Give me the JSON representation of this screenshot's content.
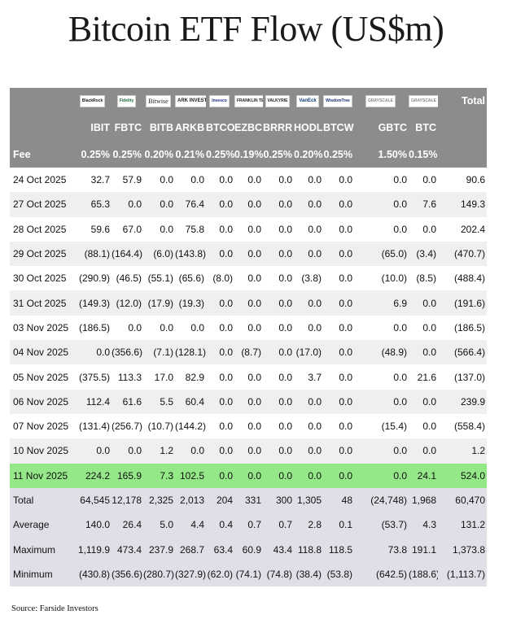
{
  "title": "Bitcoin ETF Flow (US$m)",
  "issuers": [
    "BlackRock",
    "Fidelity",
    "Bitwise",
    "ARK INVEST",
    "Invesco",
    "FRANKLIN TEMPLETON",
    "VALKYRIE",
    "VanEck",
    "WisdomTree",
    "GRAYSCALE",
    "GRAYSCALE"
  ],
  "total_label": "Total",
  "tickers": [
    "IBIT",
    "FBTC",
    "BITB",
    "ARKB",
    "BTCO",
    "EZBC",
    "BRRR",
    "HODL",
    "BTCW",
    "GBTC",
    "BTC"
  ],
  "fee": {
    "label": "Fee",
    "values": [
      "0.25%",
      "0.25%",
      "0.20%",
      "0.21%",
      "0.25%",
      "0.19%",
      "0.25%",
      "0.20%",
      "0.25%",
      "1.50%",
      "0.15%",
      ""
    ]
  },
  "rows": [
    {
      "date": "24 Oct 2025",
      "values": [
        "32.7",
        "57.9",
        "0.0",
        "0.0",
        "0.0",
        "0.0",
        "0.0",
        "0.0",
        "0.0",
        "0.0",
        "0.0",
        "90.6"
      ]
    },
    {
      "date": "27 Oct 2025",
      "values": [
        "65.3",
        "0.0",
        "0.0",
        "76.4",
        "0.0",
        "0.0",
        "0.0",
        "0.0",
        "0.0",
        "0.0",
        "7.6",
        "149.3"
      ]
    },
    {
      "date": "28 Oct 2025",
      "values": [
        "59.6",
        "67.0",
        "0.0",
        "75.8",
        "0.0",
        "0.0",
        "0.0",
        "0.0",
        "0.0",
        "0.0",
        "0.0",
        "202.4"
      ]
    },
    {
      "date": "29 Oct 2025",
      "values": [
        "(88.1)",
        "(164.4)",
        "(6.0)",
        "(143.8)",
        "0.0",
        "0.0",
        "0.0",
        "0.0",
        "0.0",
        "(65.0)",
        "(3.4)",
        "(470.7)"
      ]
    },
    {
      "date": "30 Oct 2025",
      "values": [
        "(290.9)",
        "(46.5)",
        "(55.1)",
        "(65.6)",
        "(8.0)",
        "0.0",
        "0.0",
        "(3.8)",
        "0.0",
        "(10.0)",
        "(8.5)",
        "(488.4)"
      ]
    },
    {
      "date": "31 Oct 2025",
      "values": [
        "(149.3)",
        "(12.0)",
        "(17.9)",
        "(19.3)",
        "0.0",
        "0.0",
        "0.0",
        "0.0",
        "0.0",
        "6.9",
        "0.0",
        "(191.6)"
      ]
    },
    {
      "date": "03 Nov 2025",
      "values": [
        "(186.5)",
        "0.0",
        "0.0",
        "0.0",
        "0.0",
        "0.0",
        "0.0",
        "0.0",
        "0.0",
        "0.0",
        "0.0",
        "(186.5)"
      ]
    },
    {
      "date": "04 Nov 2025",
      "values": [
        "0.0",
        "(356.6)",
        "(7.1)",
        "(128.1)",
        "0.0",
        "(8.7)",
        "0.0",
        "(17.0)",
        "0.0",
        "(48.9)",
        "0.0",
        "(566.4)"
      ]
    },
    {
      "date": "05 Nov 2025",
      "values": [
        "(375.5)",
        "113.3",
        "17.0",
        "82.9",
        "0.0",
        "0.0",
        "0.0",
        "3.7",
        "0.0",
        "0.0",
        "21.6",
        "(137.0)"
      ]
    },
    {
      "date": "06 Nov 2025",
      "values": [
        "112.4",
        "61.6",
        "5.5",
        "60.4",
        "0.0",
        "0.0",
        "0.0",
        "0.0",
        "0.0",
        "0.0",
        "0.0",
        "239.9"
      ]
    },
    {
      "date": "07 Nov 2025",
      "values": [
        "(131.4)",
        "(256.7)",
        "(10.7)",
        "(144.2)",
        "0.0",
        "0.0",
        "0.0",
        "0.0",
        "0.0",
        "(15.4)",
        "0.0",
        "(558.4)"
      ]
    },
    {
      "date": "10 Nov 2025",
      "values": [
        "0.0",
        "0.0",
        "1.2",
        "0.0",
        "0.0",
        "0.0",
        "0.0",
        "0.0",
        "0.0",
        "0.0",
        "0.0",
        "1.2"
      ]
    },
    {
      "date": "11 Nov 2025",
      "values": [
        "224.2",
        "165.9",
        "7.3",
        "102.5",
        "0.0",
        "0.0",
        "0.0",
        "0.0",
        "0.0",
        "0.0",
        "24.1",
        "524.0"
      ]
    }
  ],
  "highlight_row": "11 Nov 2025",
  "summary": [
    {
      "label": "Total",
      "values": [
        "64,545",
        "12,178",
        "2,325",
        "2,013",
        "204",
        "331",
        "300",
        "1,305",
        "48",
        "(24,748)",
        "1,968",
        "60,470"
      ]
    },
    {
      "label": "Average",
      "values": [
        "140.0",
        "26.4",
        "5.0",
        "4.4",
        "0.4",
        "0.7",
        "0.7",
        "2.8",
        "0.1",
        "(53.7)",
        "4.3",
        "131.2"
      ]
    },
    {
      "label": "Maximum",
      "values": [
        "1,119.9",
        "473.4",
        "237.9",
        "268.7",
        "63.4",
        "60.9",
        "43.4",
        "118.8",
        "118.5",
        "73.8",
        "191.1",
        "1,373.8"
      ]
    },
    {
      "label": "Minimum",
      "values": [
        "(430.8)",
        "(356.6)",
        "(280.7)",
        "(327.9)",
        "(62.0)",
        "(74.1)",
        "(74.8)",
        "(38.4)",
        "(53.8)",
        "(642.5)",
        "(188.6)",
        "(1,113.7)"
      ]
    }
  ],
  "colors": {
    "header_bg": "#8c8c8c",
    "alt_row": "#efeff1",
    "highlight": "#94e887",
    "summary_bg": "#dfe0e7",
    "negative": "#c0141e"
  },
  "source": "Source: Farside Investors"
}
